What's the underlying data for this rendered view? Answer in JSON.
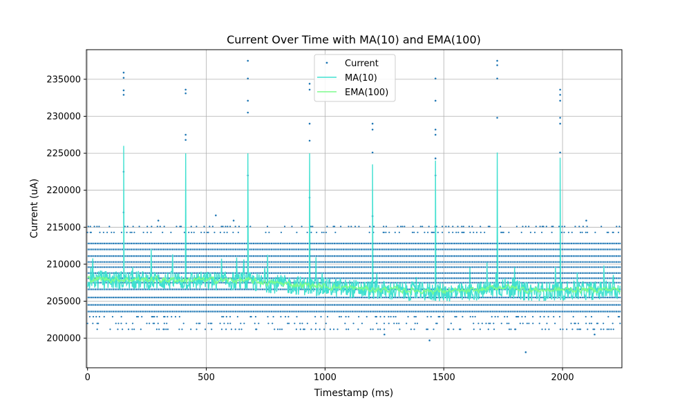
{
  "chart_data": {
    "type": "scatter",
    "title": "Current Over Time with MA(10) and EMA(100)",
    "xlabel": "Timestamp (ms)",
    "ylabel": "Current (uA)",
    "xlim": [
      -5,
      2250
    ],
    "ylim": [
      196000,
      239000
    ],
    "xticks": [
      0,
      500,
      1000,
      1500,
      2000
    ],
    "yticks": [
      200000,
      205000,
      210000,
      215000,
      220000,
      225000,
      230000,
      235000
    ],
    "grid": true,
    "legend_position": "top-center",
    "series": [
      {
        "name": "Current",
        "type": "scatter",
        "color": "#1f77b4",
        "levels": [
          203600,
          204500,
          205500,
          206600,
          207500,
          208100,
          208800,
          209600,
          210300,
          211100,
          212000,
          212800
        ],
        "sparse_levels": [
          201200,
          202000,
          202900,
          214300,
          215100
        ],
        "outliers": [
          [
            152,
            235900
          ],
          [
            152,
            235200
          ],
          [
            152,
            233500
          ],
          [
            152,
            232900
          ],
          [
            152,
            222500
          ],
          [
            152,
            217000
          ],
          [
            413,
            233600
          ],
          [
            413,
            233100
          ],
          [
            413,
            227500
          ],
          [
            413,
            226800
          ],
          [
            675,
            237500
          ],
          [
            675,
            235100
          ],
          [
            675,
            232100
          ],
          [
            675,
            230500
          ],
          [
            675,
            222000
          ],
          [
            935,
            234400
          ],
          [
            935,
            233600
          ],
          [
            935,
            229000
          ],
          [
            935,
            226700
          ],
          [
            935,
            219000
          ],
          [
            1200,
            229000
          ],
          [
            1200,
            228200
          ],
          [
            1200,
            225100
          ],
          [
            1200,
            216500
          ],
          [
            1465,
            235100
          ],
          [
            1465,
            232100
          ],
          [
            1465,
            228200
          ],
          [
            1465,
            227500
          ],
          [
            1465,
            224300
          ],
          [
            1465,
            222000
          ],
          [
            1725,
            237500
          ],
          [
            1725,
            236900
          ],
          [
            1725,
            235100
          ],
          [
            1725,
            229800
          ],
          [
            1990,
            233600
          ],
          [
            1990,
            232900
          ],
          [
            1990,
            232100
          ],
          [
            1990,
            229800
          ],
          [
            1990,
            229000
          ],
          [
            1990,
            225100
          ],
          [
            1440,
            199700
          ],
          [
            1845,
            198100
          ],
          [
            1250,
            200500
          ],
          [
            2135,
            200500
          ],
          [
            540,
            216600
          ],
          [
            615,
            215900
          ],
          [
            298,
            215900
          ],
          [
            2100,
            215900
          ]
        ]
      },
      {
        "name": "MA(10)",
        "type": "line",
        "color": "#40e0d0",
        "trend": [
          [
            0,
            207900
          ],
          [
            650,
            207700
          ],
          [
            800,
            207300
          ],
          [
            1200,
            206500
          ],
          [
            1600,
            206100
          ],
          [
            1750,
            206900
          ],
          [
            1850,
            206300
          ],
          [
            2250,
            206500
          ]
        ],
        "spikes": [
          [
            152,
            226000
          ],
          [
            413,
            225000
          ],
          [
            675,
            225000
          ],
          [
            935,
            225000
          ],
          [
            1200,
            223500
          ],
          [
            1465,
            224000
          ],
          [
            1725,
            225100
          ],
          [
            1990,
            224400
          ]
        ]
      },
      {
        "name": "EMA(100)",
        "type": "line",
        "color": "#7cfc8c",
        "trend": [
          [
            0,
            208000
          ],
          [
            650,
            207800
          ],
          [
            800,
            207400
          ],
          [
            1200,
            206600
          ],
          [
            1600,
            206300
          ],
          [
            1750,
            207000
          ],
          [
            1850,
            206500
          ],
          [
            2250,
            206600
          ]
        ]
      }
    ]
  }
}
